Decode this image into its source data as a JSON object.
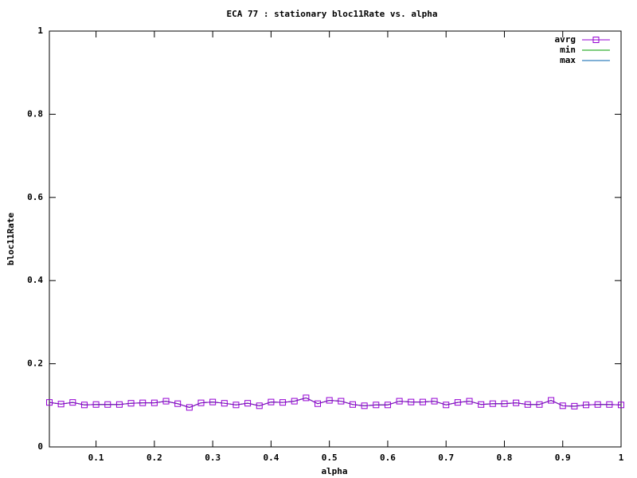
{
  "chart_data": {
    "type": "line",
    "title": "ECA 77 : stationary bloc11Rate vs. alpha",
    "x_label": "alpha",
    "y_label": "bloc11Rate",
    "x": [
      0.02,
      0.04,
      0.06,
      0.08,
      0.1,
      0.12,
      0.14,
      0.16,
      0.18,
      0.2,
      0.22,
      0.24,
      0.26,
      0.28,
      0.3,
      0.32,
      0.34,
      0.36,
      0.38,
      0.4,
      0.42,
      0.44,
      0.46,
      0.48,
      0.5,
      0.52,
      0.54,
      0.56,
      0.58,
      0.6,
      0.62,
      0.64,
      0.66,
      0.68,
      0.7,
      0.72,
      0.74,
      0.76,
      0.78,
      0.8,
      0.82,
      0.84,
      0.86,
      0.88,
      0.9,
      0.92,
      0.94,
      0.96,
      0.98,
      1
    ],
    "series": [
      {
        "name": "avrg",
        "color": "#9400d3",
        "values": [
          0.107,
          0.103,
          0.107,
          0.101,
          0.102,
          0.102,
          0.102,
          0.105,
          0.106,
          0.106,
          0.11,
          0.104,
          0.095,
          0.106,
          0.108,
          0.105,
          0.101,
          0.105,
          0.099,
          0.108,
          0.107,
          0.11,
          0.118,
          0.104,
          0.112,
          0.11,
          0.102,
          0.099,
          0.101,
          0.101,
          0.11,
          0.108,
          0.108,
          0.11,
          0.101,
          0.107,
          0.11,
          0.102,
          0.104,
          0.104,
          0.106,
          0.102,
          0.102,
          0.112,
          0.099,
          0.098,
          0.101,
          0.102,
          0.102,
          0.101
        ]
      },
      {
        "name": "min",
        "color": "#009e00",
        "values": [
          0.107,
          0.103,
          0.107,
          0.101,
          0.102,
          0.102,
          0.102,
          0.105,
          0.106,
          0.106,
          0.11,
          0.104,
          0.095,
          0.106,
          0.108,
          0.105,
          0.101,
          0.105,
          0.099,
          0.108,
          0.107,
          0.11,
          0.118,
          0.104,
          0.112,
          0.11,
          0.102,
          0.099,
          0.101,
          0.101,
          0.11,
          0.108,
          0.108,
          0.11,
          0.101,
          0.107,
          0.11,
          0.102,
          0.104,
          0.104,
          0.106,
          0.102,
          0.102,
          0.112,
          0.099,
          0.098,
          0.101,
          0.102,
          0.102,
          0.101
        ]
      },
      {
        "name": "max",
        "color": "#0060ad",
        "values": [
          0.107,
          0.103,
          0.107,
          0.101,
          0.102,
          0.102,
          0.102,
          0.105,
          0.106,
          0.106,
          0.11,
          0.104,
          0.095,
          0.106,
          0.108,
          0.105,
          0.101,
          0.105,
          0.099,
          0.108,
          0.107,
          0.11,
          0.118,
          0.104,
          0.112,
          0.11,
          0.102,
          0.099,
          0.101,
          0.101,
          0.11,
          0.108,
          0.108,
          0.11,
          0.101,
          0.107,
          0.11,
          0.102,
          0.104,
          0.104,
          0.106,
          0.102,
          0.102,
          0.112,
          0.099,
          0.098,
          0.101,
          0.102,
          0.102,
          0.101
        ]
      }
    ],
    "xlim": [
      0.02,
      1
    ],
    "ylim": [
      0,
      1
    ],
    "xticks": [
      0.1,
      0.2,
      0.3,
      0.4,
      0.5,
      0.6,
      0.7,
      0.8,
      0.9,
      1
    ],
    "yticks": [
      0,
      0.2,
      0.4,
      0.6,
      0.8,
      1
    ],
    "legend": "top-right",
    "grid": false
  }
}
